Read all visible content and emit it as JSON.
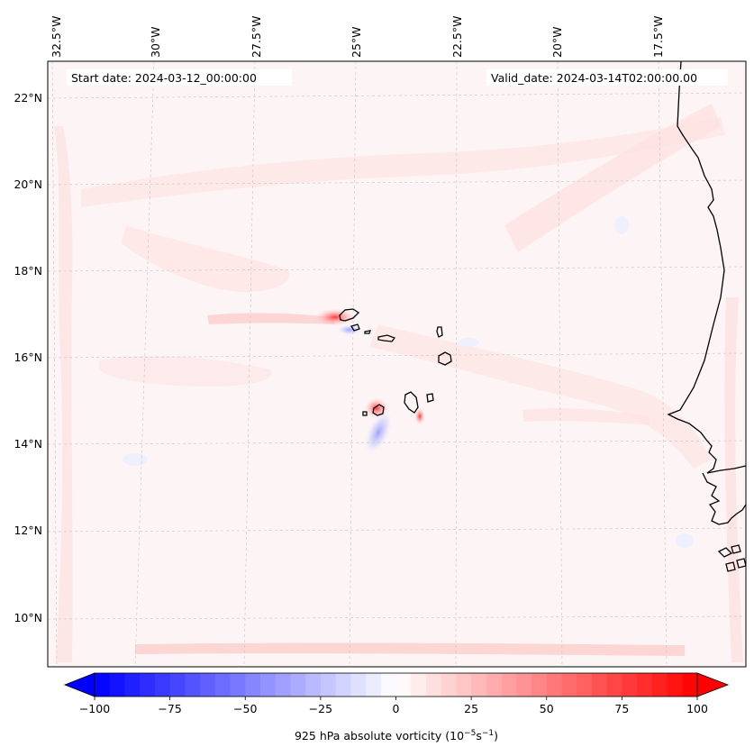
{
  "map": {
    "start_date": "Start date: 2024-03-12_00:00:00",
    "valid_date": "Valid_date: 2024-03-14T02:00:00.00",
    "lon_labels": [
      "32.5°W",
      "30°W",
      "27.5°W",
      "25°W",
      "22.5°W",
      "20°W",
      "17.5°W"
    ],
    "lat_labels": [
      "22°N",
      "20°N",
      "18°N",
      "16°N",
      "14°N",
      "12°N",
      "10°N"
    ],
    "field_colors": {
      "background": "#fdf5f5",
      "positive": "#ff0000",
      "negative": "#0000ff",
      "coast": "#000000"
    }
  },
  "colorbar": {
    "ticks": [
      "−100",
      "−75",
      "−50",
      "−25",
      "0",
      "25",
      "50",
      "75",
      "100"
    ],
    "label_prefix": "925 hPa absolute vorticity (10",
    "label_exp1": "−5",
    "label_mid": "s",
    "label_exp2": "−1",
    "label_suffix": ")",
    "range": [
      -100,
      100
    ],
    "extend": "both",
    "colormap": "bwr"
  }
}
